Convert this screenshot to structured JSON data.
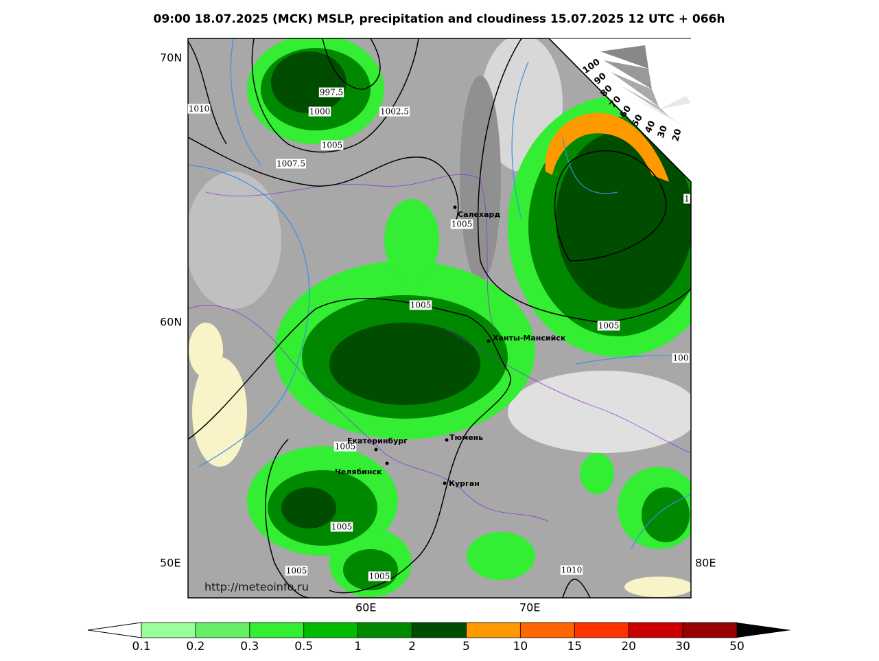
{
  "title": "09:00 18.07.2025 (МСК) MSLP, precipitation and cloudiness 15.07.2025 12 UTC + 066h",
  "lat_labels": [
    "70N",
    "60N"
  ],
  "lon_labels": [
    "50E",
    "60E",
    "70E",
    "80E"
  ],
  "isobar_labels": [
    "997.5",
    "1000",
    "1002.5",
    "1005",
    "1007.5",
    "1010",
    "1005",
    "1005",
    "1005",
    "100",
    "1",
    "1005",
    "1005",
    "1005",
    "1005",
    "1010"
  ],
  "cities": [
    "Салехард",
    "Ханты-Мансийск",
    "Екатеринбург",
    "Тюмень",
    "Челябинск",
    "Курган"
  ],
  "cloud_scale": [
    "100",
    "90",
    "80",
    "70",
    "60",
    "50",
    "40",
    "30",
    "20"
  ],
  "watermark": "http://meteoinfo.ru",
  "colorbar": {
    "ticks": [
      "0.1",
      "0.2",
      "0.3",
      "0.5",
      "1",
      "2",
      "5",
      "10",
      "15",
      "20",
      "30",
      "50"
    ],
    "colors": [
      "#99ff99",
      "#66ee66",
      "#33ee33",
      "#00bb00",
      "#008800",
      "#004d00",
      "#ff9900",
      "#ff6600",
      "#ff3300",
      "#cc0000",
      "#990000"
    ]
  }
}
